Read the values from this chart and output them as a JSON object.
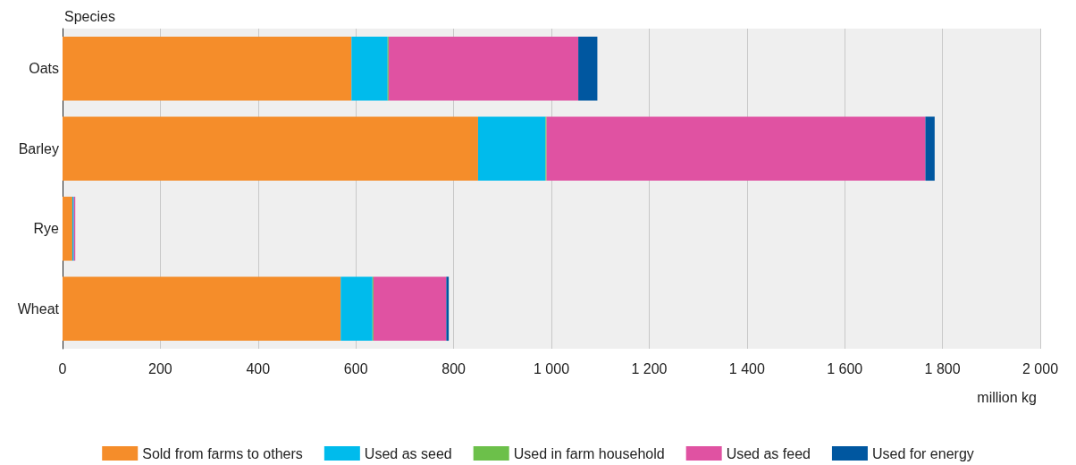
{
  "chart_data": {
    "type": "bar",
    "orientation": "horizontal",
    "stacked": true,
    "ylabel": "Species",
    "xlabel": "million kg",
    "categories": [
      "Oats",
      "Barley",
      "Rye",
      "Wheat"
    ],
    "series": [
      {
        "name": "Sold from farms to others",
        "color": "#f58d2a",
        "values": [
          591,
          850,
          20,
          569
        ]
      },
      {
        "name": "Used as seed",
        "color": "#00bbec",
        "values": [
          74,
          138,
          3,
          65
        ]
      },
      {
        "name": "Used in farm household",
        "color": "#6cc04a",
        "values": [
          2,
          2,
          0,
          2
        ]
      },
      {
        "name": "Used as feed",
        "color": "#e052a2",
        "values": [
          388,
          775,
          3,
          149
        ]
      },
      {
        "name": "Used for energy",
        "color": "#0057a0",
        "values": [
          39,
          19,
          0,
          5
        ]
      }
    ],
    "xlim": [
      0,
      2000
    ],
    "xticks": [
      0,
      200,
      400,
      600,
      800,
      {
        "value": 1000,
        "label": "1 000"
      },
      {
        "value": 1200,
        "label": "1 200"
      },
      {
        "value": 1400,
        "label": "1 400"
      },
      {
        "value": 1600,
        "label": "1 600"
      },
      {
        "value": 1800,
        "label": "1 800"
      },
      {
        "value": 2000,
        "label": "2 000"
      }
    ],
    "grid": "x",
    "legend": "bottom"
  }
}
